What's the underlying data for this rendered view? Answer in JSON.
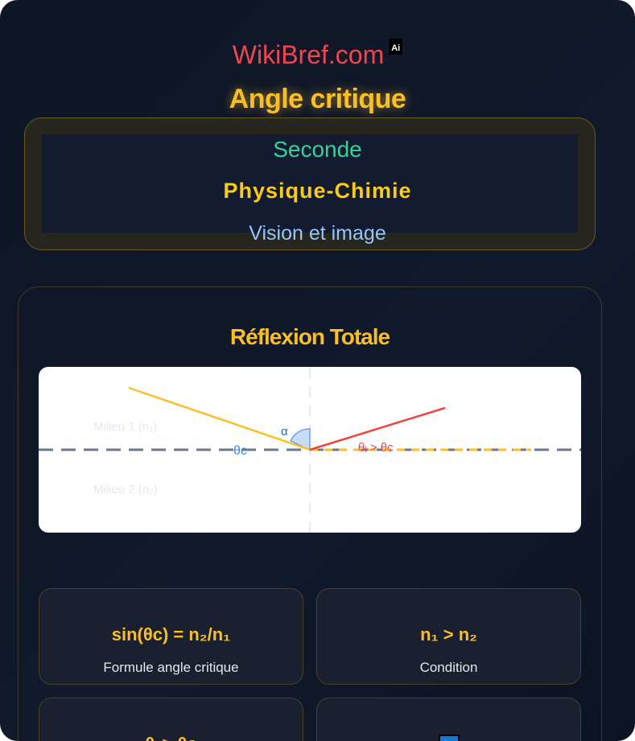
{
  "header": {
    "brand": "WikiBref.com",
    "brand_badge": "Ai",
    "title": "Angle critique",
    "level": "Seconde",
    "subject": "Physique-Chimie",
    "chapter": "Vision et image"
  },
  "section": {
    "title": "Réflexion Totale",
    "diagram": {
      "medium1": "Milieu 1 (n₁)",
      "medium2": "Milieu 2 (n₂)",
      "alpha": "α",
      "theta_c": "θc",
      "theta_i": "θᵢ > θc"
    },
    "cards": [
      {
        "value": "sin(θc) = n₂/n₁",
        "label": "Formule angle critique"
      },
      {
        "value": "n₁ > n₂",
        "label": "Condition"
      },
      {
        "value": "θᵢ > θc",
        "label": ""
      },
      {
        "value": "↪",
        "label": ""
      }
    ]
  },
  "colors": {
    "brand": "#f0474f",
    "accent": "#fbbf24",
    "level": "#34d399",
    "chapter": "#93c5fd",
    "incident": "#fbbf24",
    "reflected": "#ef4444",
    "angle": "#3b82f6"
  }
}
